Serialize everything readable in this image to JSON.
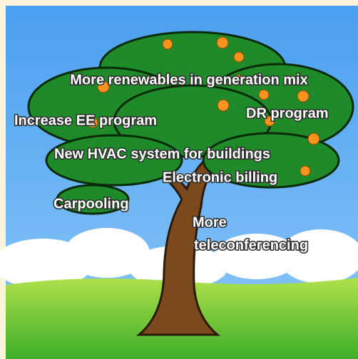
{
  "labels": [
    "More renewables in generation mix",
    "Increase EE program",
    "DR program",
    "New HVAC system for buildings",
    "Electronic billing",
    "Carpooling",
    "More",
    "teleconferencing"
  ]
}
